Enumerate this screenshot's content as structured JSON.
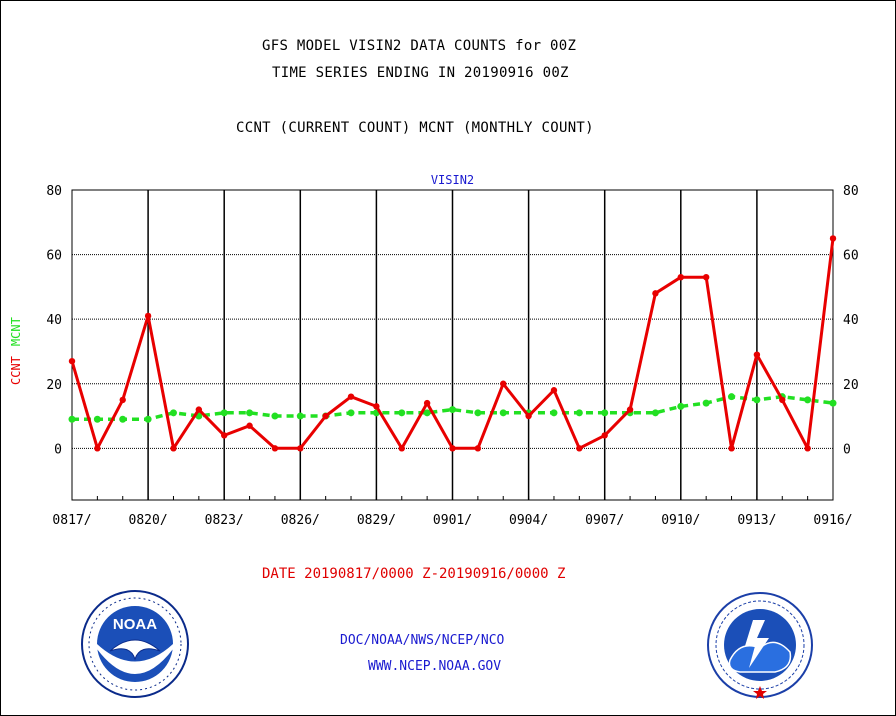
{
  "header": {
    "title_line1": "GFS MODEL VISIN2 DATA COUNTS for 00Z",
    "title_line2": "TIME SERIES ENDING IN 20190916 00Z",
    "subtitle": "CCNT (CURRENT COUNT) MCNT (MONTHLY COUNT)"
  },
  "footer": {
    "date_range": "DATE 20190817/0000 Z-20190916/0000 Z",
    "org_path": "DOC/NOAA/NWS/NCEP/NCO",
    "website": "WWW.NCEP.NOAA.GOV",
    "noaa_logo_text": "NOAA",
    "noaa_seal_text": "NATIONAL OCEANIC AND ATMOSPHERIC ADMINISTRATION · U.S. DEPARTMENT OF COMMERCE",
    "nws_seal_text": "NATIONAL WEATHER SERVICE"
  },
  "colors": {
    "ccnt": "#e80000",
    "mcnt": "#22e022",
    "panel_title": "#1a1ad0",
    "grid": "#000000"
  },
  "chart_data": {
    "type": "line",
    "panel_title": "VISIN2",
    "ylabel_ccnt": "CCNT",
    "ylabel_mcnt": "MCNT",
    "ylim": [
      -16,
      80
    ],
    "yticks": [
      0,
      20,
      40,
      60,
      80
    ],
    "x_tick_labels": [
      "0817/",
      "0820/",
      "0823/",
      "0826/",
      "0829/",
      "0901/",
      "0904/",
      "0907/",
      "0910/",
      "0913/",
      "0916/"
    ],
    "x_tick_days": [
      0,
      3,
      6,
      9,
      12,
      15,
      18,
      21,
      24,
      27,
      30
    ],
    "x": [
      "0817",
      "0818",
      "0819",
      "0820",
      "0821",
      "0822",
      "0823",
      "0824",
      "0825",
      "0826",
      "0827",
      "0828",
      "0829",
      "0830",
      "0831",
      "0901",
      "0902",
      "0903",
      "0904",
      "0905",
      "0906",
      "0907",
      "0908",
      "0909",
      "0910",
      "0911",
      "0912",
      "0913",
      "0914",
      "0915",
      "0916"
    ],
    "grid": true,
    "series": [
      {
        "name": "CCNT",
        "style": "solid",
        "values": [
          27,
          0,
          15,
          41,
          0,
          12,
          4,
          7,
          0,
          0,
          10,
          16,
          13,
          0,
          14,
          0,
          0,
          20,
          10,
          18,
          0,
          4,
          12,
          48,
          53,
          53,
          0,
          29,
          15,
          0,
          65
        ]
      },
      {
        "name": "MCNT",
        "style": "dashed",
        "values": [
          9,
          9,
          9,
          9,
          11,
          10,
          11,
          11,
          10,
          10,
          10,
          11,
          11,
          11,
          11,
          12,
          11,
          11,
          11,
          11,
          11,
          11,
          11,
          11,
          13,
          14,
          16,
          15,
          16,
          15,
          14
        ]
      }
    ]
  }
}
